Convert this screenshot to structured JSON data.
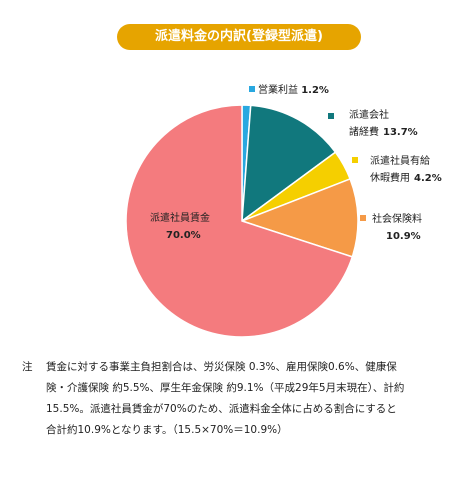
{
  "title": "派遣料金の内訳(登録型派遣)",
  "chart_data": {
    "type": "pie",
    "slices": [
      {
        "label": [
          "営業利益"
        ],
        "value": 1.2,
        "value_text": "1.2%",
        "color": "#29a8e0"
      },
      {
        "label": [
          "派遣会社",
          "諸経費"
        ],
        "value": 13.7,
        "value_text": "13.7%",
        "color": "#11787d"
      },
      {
        "label": [
          "派遣社員有給",
          "休暇費用"
        ],
        "value": 4.2,
        "value_text": "4.2%",
        "color": "#f5cf00"
      },
      {
        "label": [
          "社会保険料"
        ],
        "value": 10.9,
        "value_text": "10.9%",
        "color": "#f59a47"
      },
      {
        "label": [
          "派遣社員賃金"
        ],
        "value": 70.0,
        "value_text": "70.0%",
        "color": "#f47b7e"
      }
    ]
  },
  "note": {
    "mark": "注",
    "text": "賃金に対する事業主負担割合は、労災保険 0.3%、雇用保険0.6%、健康保\n険・介護保険 約5.5%、厚生年金保険 約9.1%（平成29年5月末現在）、計約\n15.5%。派遣社員賃金が70%のため、派遣料金全体に占める割合にすると\n合計約10.9%となります。（15.5×70%＝10.9%）"
  }
}
